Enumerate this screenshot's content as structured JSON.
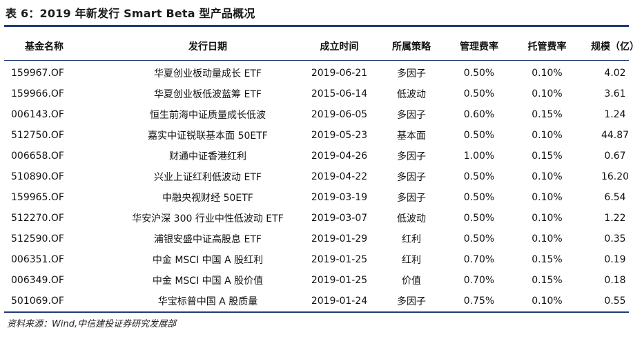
{
  "title": "表 6：2019 年新发行 Smart Beta 型产品概况",
  "columns": [
    "基金名称",
    "发行日期",
    "成立时间",
    "所属策略",
    "管理费率",
    "托管费率",
    "规模（亿）"
  ],
  "rows": [
    [
      "159967.OF",
      "华夏创业板动量成长 ETF",
      "2019-06-21",
      "多因子",
      "0.50%",
      "0.10%",
      "4.02"
    ],
    [
      "159966.OF",
      "华夏创业板低波蓝筹 ETF",
      "2015-06-14",
      "低波动",
      "0.50%",
      "0.10%",
      "3.61"
    ],
    [
      "006143.OF",
      "恒生前海中证质量成长低波",
      "2019-06-05",
      "多因子",
      "0.60%",
      "0.15%",
      "1.24"
    ],
    [
      "512750.OF",
      "嘉实中证锐联基本面 50ETF",
      "2019-05-23",
      "基本面",
      "0.50%",
      "0.10%",
      "44.87"
    ],
    [
      "006658.OF",
      "财通中证香港红利",
      "2019-04-26",
      "多因子",
      "1.00%",
      "0.15%",
      "0.67"
    ],
    [
      "510890.OF",
      "兴业上证红利低波动 ETF",
      "2019-04-22",
      "多因子",
      "0.50%",
      "0.10%",
      "16.20"
    ],
    [
      "159965.OF",
      "中融央视财经 50ETF",
      "2019-03-19",
      "多因子",
      "0.50%",
      "0.10%",
      "6.54"
    ],
    [
      "512270.OF",
      "华安沪深 300 行业中性低波动 ETF",
      "2019-03-07",
      "低波动",
      "0.50%",
      "0.10%",
      "1.22"
    ],
    [
      "512590.OF",
      "浦银安盛中证高股息 ETF",
      "2019-01-29",
      "红利",
      "0.50%",
      "0.10%",
      "0.35"
    ],
    [
      "006351.OF",
      "中金 MSCI 中国 A 股红利",
      "2019-01-25",
      "红利",
      "0.70%",
      "0.15%",
      "0.19"
    ],
    [
      "006349.OF",
      "中金 MSCI 中国 A 股价值",
      "2019-01-25",
      "价值",
      "0.70%",
      "0.15%",
      "0.18"
    ],
    [
      "501069.OF",
      "华宝标普中国 A 股质量",
      "2019-01-24",
      "多因子",
      "0.75%",
      "0.10%",
      "0.55"
    ]
  ],
  "source": "资料来源：Wind,中信建投证券研究发展部",
  "colors": {
    "rule": "#1f3b73"
  }
}
